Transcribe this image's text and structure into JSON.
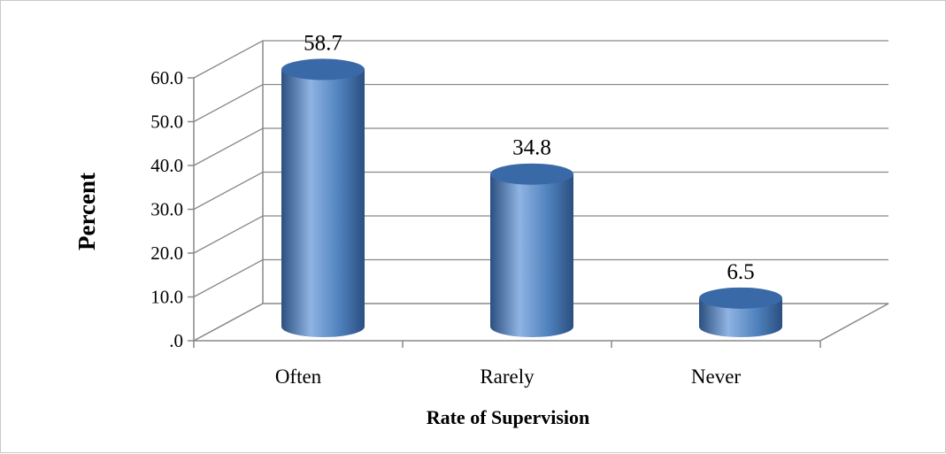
{
  "chart_data": {
    "type": "bar",
    "bar_shape": "3d-cylinder",
    "categories": [
      "Often",
      "Rarely",
      "Never"
    ],
    "values": [
      58.7,
      34.8,
      6.5
    ],
    "data_labels": [
      "58.7",
      "34.8",
      "6.5"
    ],
    "xlabel": "Rate of Supervision",
    "ylabel": "Percent",
    "ylim": [
      0,
      60
    ],
    "yticks": [
      0,
      10,
      20,
      30,
      40,
      50,
      60
    ],
    "ytick_labels": [
      ".0",
      "10.0",
      "20.0",
      "30.0",
      "40.0",
      "50.0",
      "60.0"
    ],
    "grid": true,
    "legend": "none",
    "colors": {
      "bar": "#4f81bd",
      "bar_dark": "#2b4f80",
      "bar_light": "#8fb3e2",
      "bar_top": "#3a69a8",
      "grid": "#888888",
      "axis": "#888888"
    }
  }
}
